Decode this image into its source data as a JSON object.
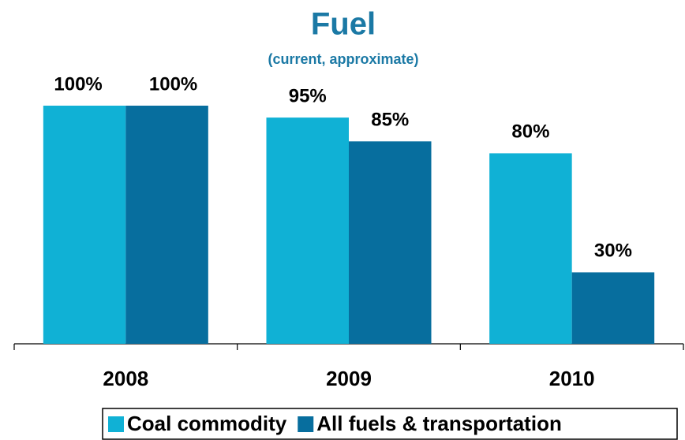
{
  "chart_data": {
    "type": "bar",
    "title": "Fuel",
    "subtitle": "(current, approximate)",
    "categories": [
      "2008",
      "2009",
      "2010"
    ],
    "series": [
      {
        "name": "Coal commodity",
        "color": "#10b1d5",
        "values": [
          100,
          95,
          80
        ],
        "value_labels": [
          "100%",
          "95%",
          "80%"
        ]
      },
      {
        "name": "All fuels & transportation",
        "color": "#076e9e",
        "values": [
          100,
          85,
          30
        ],
        "value_labels": [
          "100%",
          "85%",
          "30%"
        ]
      }
    ],
    "ylim": [
      0,
      100
    ],
    "legend": "bottom",
    "grid": false
  }
}
